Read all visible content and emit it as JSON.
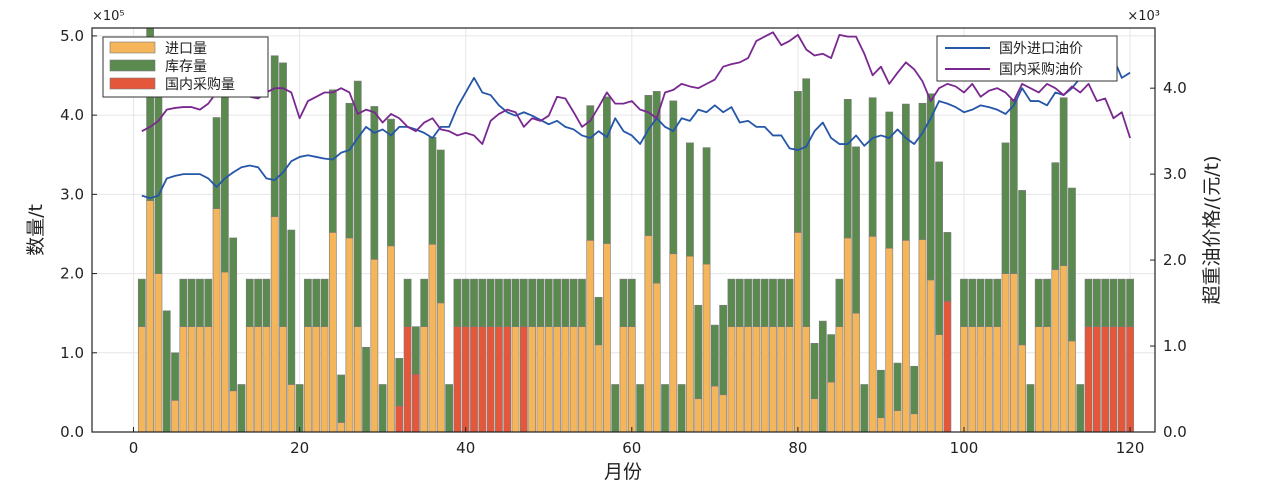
{
  "chart_data": {
    "type": "bar+line",
    "x_label": "月份",
    "y_left_label": "数量/t",
    "y_right_label": "超重油价格/(元/t)",
    "y_left_multiplier": "×10⁵",
    "y_right_multiplier": "×10³",
    "x_ticks": [
      "0",
      "20",
      "40",
      "60",
      "80",
      "100",
      "120"
    ],
    "y_left_ticks": [
      "0.0",
      "1.0",
      "2.0",
      "3.0",
      "4.0",
      "5.0"
    ],
    "y_right_ticks": [
      "0.0",
      "1.0",
      "2.0",
      "3.0",
      "4.0"
    ],
    "xlim": [
      -5,
      123
    ],
    "ylim_left": [
      0,
      5.1
    ],
    "ylim_right": [
      0,
      4.7
    ],
    "legend_left": [
      "进口量",
      "库存量",
      "国内采购量"
    ],
    "legend_right": [
      "国外进口油价",
      "国内采购油价"
    ],
    "colors": {
      "import": "#F5B55A",
      "stock": "#5A8A4E",
      "domestic": "#E4573A",
      "foreign_price": "#2556A8",
      "domestic_price": "#7A2890",
      "bar_edge": "#7a7a7a"
    },
    "months": [
      1,
      2,
      3,
      4,
      5,
      6,
      7,
      8,
      9,
      10,
      11,
      12,
      13,
      14,
      15,
      16,
      17,
      18,
      19,
      20,
      21,
      22,
      23,
      24,
      25,
      26,
      27,
      28,
      29,
      30,
      31,
      32,
      33,
      34,
      35,
      36,
      37,
      38,
      39,
      40,
      41,
      42,
      43,
      44,
      45,
      46,
      47,
      48,
      49,
      50,
      51,
      52,
      53,
      54,
      55,
      56,
      57,
      58,
      59,
      60,
      61,
      62,
      63,
      64,
      65,
      66,
      67,
      68,
      69,
      70,
      71,
      72,
      73,
      74,
      75,
      76,
      77,
      78,
      79,
      80,
      81,
      82,
      83,
      84,
      85,
      86,
      87,
      88,
      89,
      90,
      91,
      92,
      93,
      94,
      95,
      96,
      97,
      98,
      99,
      100,
      101,
      102,
      103,
      104,
      105,
      106,
      107,
      108,
      109,
      110,
      111,
      112,
      113,
      114,
      115,
      116,
      117,
      118,
      119,
      120
    ],
    "series": [
      {
        "name": "进口量",
        "values": [
          1.33,
          2.92,
          2.0,
          0,
          0.4,
          1.33,
          1.33,
          1.33,
          1.33,
          2.82,
          2.02,
          0.52,
          0,
          1.33,
          1.33,
          1.33,
          2.72,
          1.33,
          0.6,
          0,
          1.33,
          1.33,
          1.33,
          2.52,
          0.12,
          2.45,
          1.33,
          0,
          2.18,
          0,
          2.35,
          0,
          0,
          0,
          1.33,
          2.37,
          1.63,
          0,
          0,
          0,
          0,
          0,
          0,
          0,
          0,
          1.33,
          0,
          1.33,
          1.33,
          1.33,
          1.33,
          1.33,
          1.33,
          1.33,
          2.42,
          1.1,
          2.38,
          0,
          1.33,
          1.33,
          0,
          2.48,
          1.88,
          0,
          2.25,
          0,
          2.22,
          0.42,
          2.12,
          0.58,
          0.47,
          1.33,
          1.33,
          1.33,
          1.33,
          1.33,
          1.33,
          1.33,
          1.33,
          2.52,
          1.33,
          0.42,
          0,
          0.63,
          1.33,
          2.45,
          1.5,
          0,
          2.47,
          0.18,
          2.32,
          0.27,
          2.42,
          0.23,
          2.43,
          1.92,
          1.23,
          0,
          0,
          1.33,
          1.33,
          1.33,
          1.33,
          1.33,
          2.0,
          2.0,
          1.1,
          0,
          1.33,
          1.33,
          2.05,
          2.1,
          1.15,
          0,
          0,
          0,
          0,
          0,
          0,
          0
        ],
        "color": "#F5B55A"
      },
      {
        "name": "库存量",
        "values": [
          0.6,
          2.18,
          2.48,
          1.53,
          0.6,
          0.6,
          0.6,
          0.6,
          0.6,
          1.15,
          2.68,
          1.93,
          0.6,
          0.6,
          0.6,
          0.6,
          2.03,
          3.33,
          1.95,
          0.6,
          0.6,
          0.6,
          0.6,
          1.8,
          0.6,
          1.7,
          3.1,
          1.07,
          1.93,
          0.6,
          1.6,
          0.6,
          0.6,
          0.6,
          0.6,
          1.35,
          1.93,
          0.6,
          0.6,
          0.6,
          0.6,
          0.6,
          0.6,
          0.6,
          0.6,
          0.6,
          0.6,
          0.6,
          0.6,
          0.6,
          0.6,
          0.6,
          0.6,
          0.6,
          1.7,
          0.6,
          1.85,
          0.6,
          0.6,
          0.6,
          0.6,
          1.77,
          2.42,
          0.6,
          1.93,
          0.6,
          1.43,
          1.18,
          1.47,
          0.77,
          1.13,
          0.6,
          0.6,
          0.6,
          0.6,
          0.6,
          0.6,
          0.6,
          0.6,
          1.78,
          3.13,
          0.7,
          1.4,
          0.6,
          0.6,
          1.75,
          2.1,
          0.6,
          1.75,
          0.6,
          1.72,
          0.6,
          1.72,
          0.6,
          1.72,
          2.35,
          2.18,
          0.87,
          0,
          0.6,
          0.6,
          0.6,
          0.6,
          0.6,
          1.65,
          2.2,
          1.95,
          0.6,
          0.6,
          0.6,
          1.35,
          2.12,
          1.93,
          0.6,
          0.6,
          0.6,
          0.6,
          0.6,
          0.6,
          0.6
        ],
        "color": "#5A8A4E"
      },
      {
        "name": "国内采购量",
        "values": [
          0,
          0,
          0,
          0,
          0,
          0,
          0,
          0,
          0,
          0,
          0,
          0,
          0,
          0,
          0,
          0,
          0,
          0,
          0,
          0,
          0,
          0,
          0,
          0,
          0,
          0,
          0,
          0,
          0,
          0,
          0,
          0.33,
          1.33,
          0.73,
          0,
          0,
          0,
          0,
          1.33,
          1.33,
          1.33,
          1.33,
          1.33,
          1.33,
          1.33,
          0,
          1.33,
          0,
          0,
          0,
          0,
          0,
          0,
          0,
          0,
          0,
          0,
          0,
          0,
          0,
          0,
          0,
          0,
          0,
          0,
          0,
          0,
          0,
          0,
          0,
          0,
          0,
          0,
          0,
          0,
          0,
          0,
          0,
          0,
          0,
          0,
          0,
          0,
          0,
          0,
          0,
          0,
          0,
          0,
          0,
          0,
          0,
          0,
          0,
          0,
          0,
          0,
          1.65,
          0,
          0,
          0,
          0,
          0,
          0,
          0,
          0,
          0,
          0,
          0,
          0,
          0,
          0,
          0,
          0,
          1.33,
          1.33,
          1.33,
          1.33,
          1.33,
          1.33
        ],
        "color": "#E4573A"
      },
      {
        "name": "国外进口油价",
        "values": [
          2.75,
          2.72,
          2.75,
          2.95,
          2.98,
          3.0,
          3.0,
          3.0,
          2.95,
          2.85,
          2.95,
          3.02,
          3.08,
          3.1,
          3.08,
          2.95,
          2.93,
          3.02,
          3.15,
          3.2,
          3.22,
          3.2,
          3.18,
          3.17,
          3.25,
          3.28,
          3.42,
          3.55,
          3.48,
          3.52,
          3.45,
          3.55,
          3.55,
          3.52,
          3.48,
          3.42,
          3.55,
          3.55,
          3.78,
          3.95,
          4.12,
          3.95,
          3.92,
          3.8,
          3.72,
          3.68,
          3.72,
          3.68,
          3.63,
          3.58,
          3.62,
          3.55,
          3.52,
          3.45,
          3.42,
          3.5,
          3.43,
          3.65,
          3.5,
          3.45,
          3.35,
          3.52,
          3.65,
          3.55,
          3.5,
          3.65,
          3.62,
          3.75,
          3.72,
          3.8,
          3.72,
          3.78,
          3.6,
          3.62,
          3.55,
          3.55,
          3.45,
          3.45,
          3.3,
          3.28,
          3.32,
          3.5,
          3.6,
          3.42,
          3.35,
          3.35,
          3.45,
          3.33,
          3.42,
          3.45,
          3.42,
          3.52,
          3.42,
          3.35,
          3.48,
          3.65,
          3.85,
          3.82,
          3.78,
          3.72,
          3.75,
          3.8,
          3.78,
          3.75,
          3.7,
          3.8,
          4.0,
          3.85,
          3.85,
          3.8,
          3.95,
          3.92,
          4.0,
          4.12,
          4.25,
          4.22,
          4.35,
          4.35,
          4.12,
          4.18
        ],
        "color": "#2556A8"
      },
      {
        "name": "国内采购油价",
        "values": [
          3.5,
          3.55,
          3.62,
          3.75,
          3.77,
          3.78,
          3.78,
          3.75,
          3.82,
          3.95,
          3.9,
          3.95,
          4.0,
          3.9,
          3.88,
          3.95,
          4.0,
          4.0,
          3.95,
          3.65,
          3.85,
          3.9,
          3.95,
          3.95,
          4.0,
          3.95,
          3.7,
          3.75,
          3.72,
          3.6,
          3.7,
          3.65,
          3.55,
          3.5,
          3.6,
          3.65,
          3.52,
          3.5,
          3.45,
          3.48,
          3.45,
          3.35,
          3.62,
          3.7,
          3.75,
          3.72,
          3.55,
          3.65,
          3.62,
          3.68,
          3.9,
          3.88,
          3.72,
          3.55,
          3.62,
          3.78,
          3.95,
          3.82,
          3.82,
          3.85,
          3.75,
          3.72,
          3.65,
          3.95,
          3.98,
          4.05,
          4.02,
          4.0,
          4.05,
          4.1,
          4.25,
          4.28,
          4.3,
          4.35,
          4.55,
          4.6,
          4.65,
          4.5,
          4.55,
          4.62,
          4.45,
          4.38,
          4.4,
          4.35,
          4.62,
          4.6,
          4.6,
          4.4,
          4.15,
          4.25,
          4.05,
          4.18,
          4.3,
          4.22,
          4.08,
          3.85,
          4.0,
          4.05,
          4.02,
          3.95,
          4.05,
          3.9,
          3.97,
          4.0,
          3.95,
          3.85,
          4.05,
          4.0,
          3.95,
          4.05,
          4.0,
          3.92,
          4.02,
          3.95,
          4.05,
          3.85,
          3.88,
          3.65,
          3.72,
          3.42
        ],
        "color": "#7A2890"
      }
    ]
  }
}
